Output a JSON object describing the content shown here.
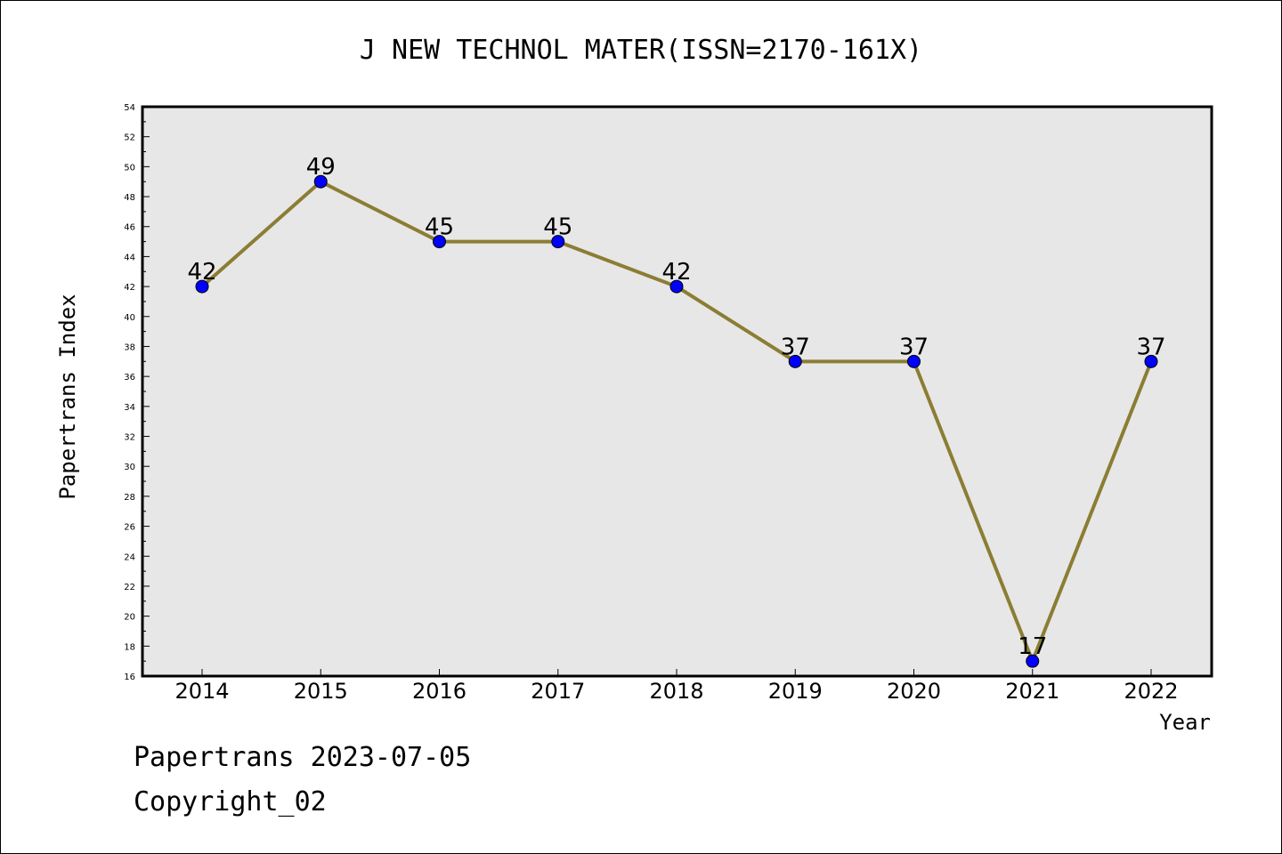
{
  "chart_data": {
    "type": "line",
    "title": "J NEW TECHNOL MATER(ISSN=2170-161X)",
    "xlabel": "Year",
    "ylabel": "Papertrans Index",
    "categories": [
      "2014",
      "2015",
      "2016",
      "2017",
      "2018",
      "2019",
      "2020",
      "2021",
      "2022"
    ],
    "series": [
      {
        "values": [
          42,
          49,
          45,
          45,
          42,
          37,
          37,
          17,
          37
        ]
      }
    ],
    "ylim": [
      16,
      54
    ],
    "ytick_step": 2,
    "data_labels": true,
    "grid": false,
    "legend": "none",
    "colors": {
      "line": "#8b7d34",
      "marker": "#0000ff",
      "plot_background": "#e7e7e7"
    }
  },
  "footer": {
    "line1": "Papertrans 2023-07-05",
    "line2": "Copyright_02"
  }
}
